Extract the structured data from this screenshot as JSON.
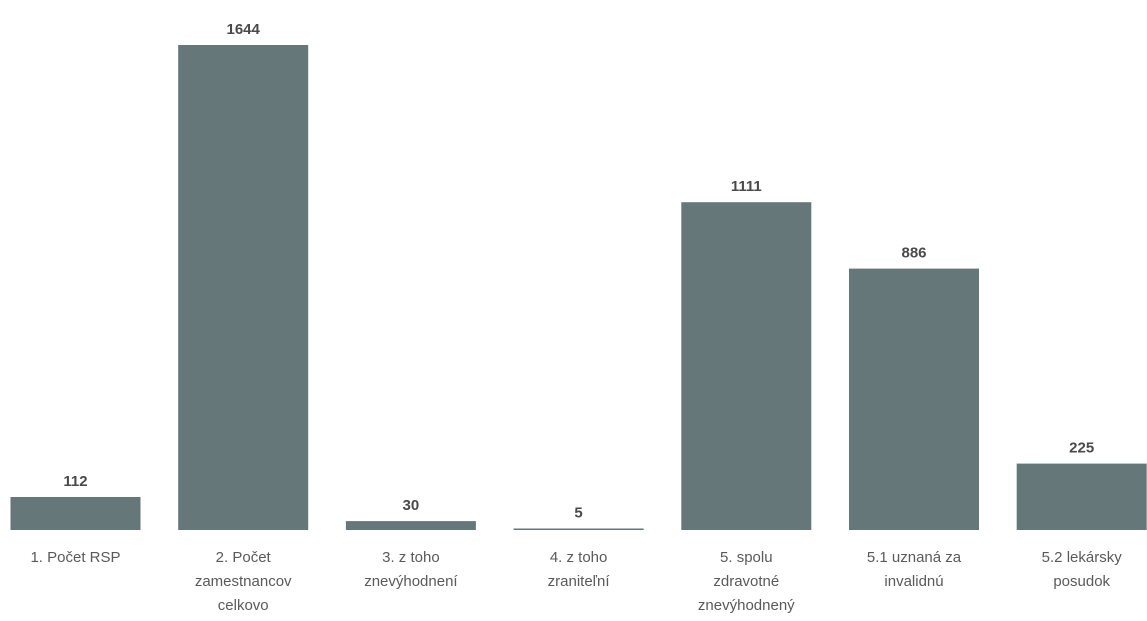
{
  "chart_data": {
    "type": "bar",
    "categories": [
      [
        "1. Počet RSP"
      ],
      [
        "2. Počet",
        "zamestnancov",
        "celkovo"
      ],
      [
        "3. z toho",
        "znevýhodnení"
      ],
      [
        "4. z toho",
        "zraniteľní"
      ],
      [
        "5. spolu",
        "zdravotné",
        "znevýhodnený"
      ],
      [
        "5.1 uznaná za",
        "invalidnú"
      ],
      [
        "5.2 lekársky",
        "posudok"
      ]
    ],
    "values": [
      112,
      1644,
      30,
      5,
      1111,
      886,
      225
    ],
    "data_labels": [
      "112",
      "1644",
      "30",
      "5",
      "1111",
      "886",
      "225"
    ],
    "ylim": [
      0,
      1644
    ],
    "grid": false,
    "legend": "none",
    "colors": {
      "bar": "#66777a",
      "value_label": "#4a4a4a",
      "category_label": "#5a5a5a"
    }
  }
}
